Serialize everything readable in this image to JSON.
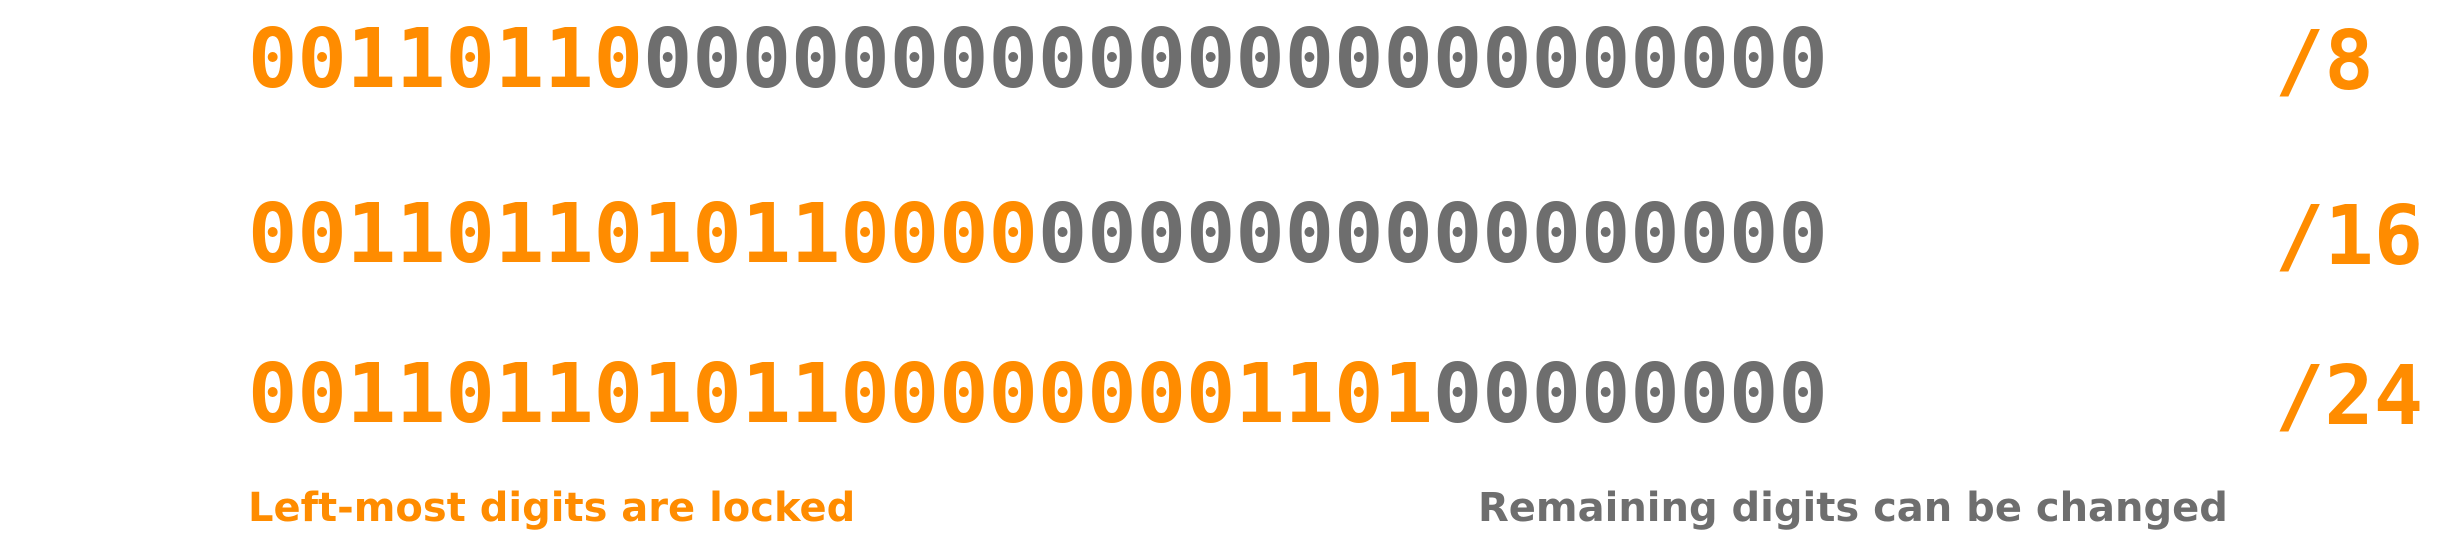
{
  "colors": {
    "locked": "#FF8C00",
    "free": "#6E6E6E",
    "background": "#FFFFFF"
  },
  "rows": [
    {
      "locked_bits": "00110110",
      "free_bits": "000000000000000000000000",
      "prefix_label": "/8"
    },
    {
      "locked_bits": "0011011010110000",
      "free_bits": "0000000000000000",
      "prefix_label": "/16"
    },
    {
      "locked_bits": "001101101011000000001101",
      "free_bits": "00000000",
      "prefix_label": "/24"
    }
  ],
  "captions": {
    "locked": "Left-most digits are locked",
    "free": "Remaining digits can be changed"
  }
}
